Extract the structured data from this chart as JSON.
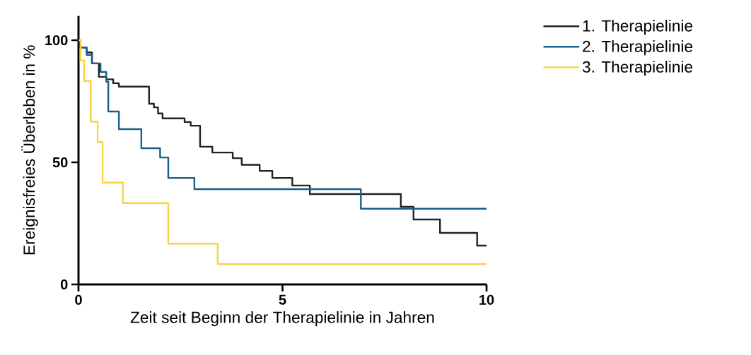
{
  "chart_data": {
    "type": "step",
    "xlabel": "Zeit seit Beginn der Therapielinie in Jahren",
    "ylabel": "Ereignisfreies Überleben in %",
    "xlim": [
      0,
      10
    ],
    "ylim": [
      0,
      110
    ],
    "xticks": [
      0,
      5,
      10
    ],
    "yticks": [
      0,
      50,
      100
    ],
    "legend": "top right",
    "series": [
      {
        "name": "1. Therapielinie",
        "color": "#222222",
        "x": [
          0,
          0.03,
          0.2,
          0.33,
          0.5,
          0.68,
          0.85,
          0.99,
          1.73,
          1.85,
          1.95,
          2.06,
          2.6,
          2.75,
          2.98,
          3.28,
          3.78,
          4.0,
          4.44,
          4.75,
          5.24,
          5.67,
          7.9,
          8.21,
          8.86,
          9.77,
          10
        ],
        "values": [
          100,
          97,
          95,
          90.5,
          85,
          84,
          82.4,
          81,
          74,
          72.5,
          70,
          68,
          66.5,
          65,
          56.4,
          54,
          51.7,
          49,
          46.5,
          43.6,
          40.5,
          37,
          31.8,
          26.6,
          21.1,
          15.9,
          15.9
        ]
      },
      {
        "name": "2. Therapielinie",
        "color": "#1a5e8a",
        "x": [
          0,
          0.05,
          0.2,
          0.33,
          0.54,
          0.68,
          0.73,
          0.99,
          1.54,
          2.0,
          2.2,
          2.84,
          6.92,
          10
        ],
        "values": [
          100,
          97,
          94,
          90.5,
          87,
          83,
          70.8,
          63.6,
          55.8,
          52,
          43.6,
          39,
          31,
          31
        ]
      },
      {
        "name": "3. Therapielinie",
        "color": "#f9d342",
        "x": [
          0,
          0.05,
          0.14,
          0.3,
          0.47,
          0.59,
          1.09,
          2.2,
          3.41,
          10
        ],
        "values": [
          100,
          91.7,
          83.3,
          66.7,
          58.3,
          41.7,
          33.3,
          16.7,
          8.3,
          8.3
        ]
      }
    ]
  }
}
